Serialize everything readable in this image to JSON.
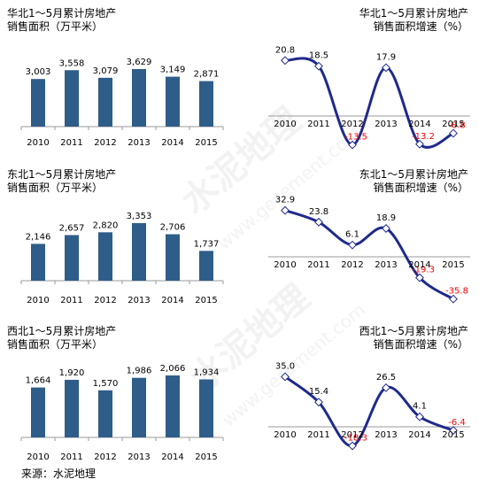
{
  "source": "来源：水泥地理",
  "watermark": {
    "text": "水泥地理",
    "url": "www.gecement.com"
  },
  "colors": {
    "bar": "#2e5d8a",
    "line": "#1f2a8c",
    "negative": "#ff0000",
    "axis": "#9a9a9a"
  },
  "chart_data": [
    {
      "type": "bar",
      "title_lines": [
        "华北1～5月累计房地产",
        "销售面积（万平米）"
      ],
      "categories": [
        "2010",
        "2011",
        "2012",
        "2013",
        "2014",
        "2015"
      ],
      "values": [
        3003,
        3558,
        3079,
        3629,
        3149,
        2871
      ],
      "labels": [
        "3,003",
        "3,558",
        "3,079",
        "3,629",
        "3,149",
        "2,871"
      ],
      "ylim": [
        0,
        3629
      ]
    },
    {
      "type": "line",
      "title_lines": [
        "华北1～5月累计房地产",
        "销售面积增速（%）"
      ],
      "categories": [
        "2010",
        "2011",
        "2012",
        "2013",
        "2014",
        "2015"
      ],
      "values": [
        20.8,
        18.5,
        -13.5,
        17.9,
        -13.2,
        -8.8
      ],
      "labels": [
        "20.8",
        "18.5",
        "-13.5",
        "17.9",
        "-13.2",
        "-8.8"
      ],
      "ylim": [
        -14,
        22
      ]
    },
    {
      "type": "bar",
      "title_lines": [
        "东北1～5月累计房地产",
        "销售面积（万平米）"
      ],
      "categories": [
        "2010",
        "2011",
        "2012",
        "2013",
        "2014",
        "2015"
      ],
      "values": [
        2146,
        2657,
        2820,
        3353,
        2706,
        1737
      ],
      "labels": [
        "2,146",
        "2,657",
        "2,820",
        "3,353",
        "2,706",
        "1,737"
      ],
      "ylim": [
        0,
        3353
      ]
    },
    {
      "type": "line",
      "title_lines": [
        "东北1～5月累计房地产",
        "销售面积增速（%）"
      ],
      "categories": [
        "2010",
        "2011",
        "2012",
        "2013",
        "2014",
        "2015"
      ],
      "values": [
        32.9,
        23.8,
        6.1,
        18.9,
        -19.3,
        -35.8
      ],
      "labels": [
        "32.9",
        "23.8",
        "6.1",
        "18.9",
        "-19.3",
        "-35.8"
      ],
      "ylim": [
        -36,
        34
      ]
    },
    {
      "type": "bar",
      "title_lines": [
        "西北1～5月累计房地产",
        "销售面积（万平米）"
      ],
      "categories": [
        "2010",
        "2011",
        "2012",
        "2013",
        "2014",
        "2015"
      ],
      "values": [
        1664,
        1920,
        1570,
        1986,
        2066,
        1934
      ],
      "labels": [
        "1,664",
        "1,920",
        "1,570",
        "1,986",
        "2,066",
        "1,934"
      ],
      "ylim": [
        0,
        2066
      ]
    },
    {
      "type": "line",
      "title_lines": [
        "西北1～5月累计房地产",
        "销售面积增速（%）"
      ],
      "categories": [
        "2010",
        "2011",
        "2012",
        "2013",
        "2014",
        "2015"
      ],
      "values": [
        35.0,
        15.4,
        -18.3,
        26.5,
        4.1,
        -6.4
      ],
      "labels": [
        "35.0",
        "15.4",
        "-18.3",
        "26.5",
        "4.1",
        "-6.4"
      ],
      "ylim": [
        -20,
        36
      ]
    }
  ]
}
